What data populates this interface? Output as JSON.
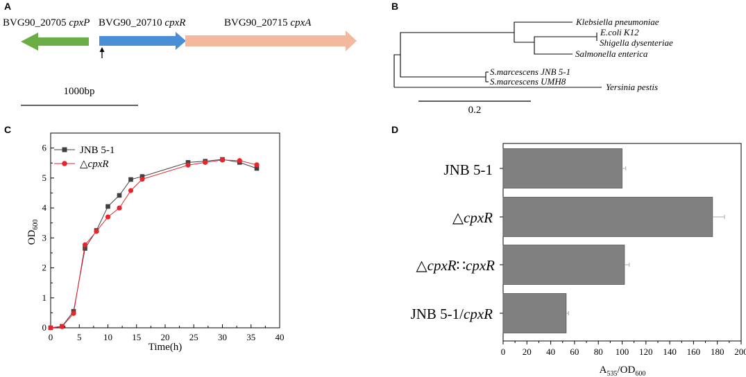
{
  "panel_a": {
    "letter": "A",
    "genes": [
      {
        "id": "BVG90_20705",
        "name": "cpxP",
        "color": "#6aac46",
        "direction": "left"
      },
      {
        "id": "BVG90_20710",
        "name": "cpxR",
        "color": "#4a8fd6",
        "direction": "right"
      },
      {
        "id": "BVG90_20715",
        "name": "cpxA",
        "color": "#f4b89d",
        "direction": "right"
      }
    ],
    "scale_label": "1000bp"
  },
  "panel_b": {
    "letter": "B",
    "taxa": [
      "Klebsiella pneumoniae",
      "E.coli K12",
      "Shigella dysenteriae",
      "Salmonella enterica",
      "S.marcescens JNB 5-1",
      "S.marcescens UMH8",
      "Yersinia pestis"
    ],
    "scale_label": "0.2"
  },
  "chart_data": [
    {
      "panel": "C",
      "type": "line",
      "xlabel": "Time(h)",
      "ylabel_main": "OD",
      "ylabel_sub": "600",
      "xlim": [
        0,
        40
      ],
      "ylim": [
        0,
        6.5
      ],
      "xticks": [
        0,
        5,
        10,
        15,
        20,
        25,
        30,
        35,
        40
      ],
      "yticks": [
        0,
        1,
        2,
        3,
        4,
        5,
        6
      ],
      "series": [
        {
          "name_prefix": "JNB 5-1",
          "name_italic": "",
          "color": "#404040",
          "marker": "square",
          "x": [
            0,
            2,
            4,
            6,
            8,
            10,
            12,
            14,
            16,
            24,
            27,
            30,
            33,
            36
          ],
          "y": [
            0,
            0.05,
            0.55,
            2.65,
            3.25,
            4.05,
            4.42,
            4.95,
            5.05,
            5.52,
            5.56,
            5.62,
            5.52,
            5.32
          ]
        },
        {
          "name_prefix": "△",
          "name_italic": "cpxR",
          "color": "#e8242c",
          "marker": "circle",
          "x": [
            0,
            2,
            4,
            6,
            8,
            10,
            12,
            14,
            16,
            24,
            27,
            30,
            33,
            36
          ],
          "y": [
            0,
            0.04,
            0.48,
            2.77,
            3.22,
            3.7,
            4.0,
            4.58,
            4.96,
            5.43,
            5.52,
            5.6,
            5.58,
            5.44
          ]
        }
      ]
    },
    {
      "panel": "D",
      "type": "bar",
      "orientation": "horizontal",
      "xlabel_main": "A",
      "xlabel_sub1": "535",
      "xlabel_mid": "/OD",
      "xlabel_sub2": "600",
      "xlim": [
        0,
        200
      ],
      "xticks": [
        0,
        20,
        40,
        60,
        80,
        100,
        120,
        140,
        160,
        180,
        200
      ],
      "bar_color": "#808080",
      "categories": [
        {
          "prefix": "JNB 5-1",
          "italic": "",
          "sep": "",
          "italic2": ""
        },
        {
          "prefix": "△",
          "italic": "cpxR",
          "sep": "",
          "italic2": ""
        },
        {
          "prefix": "△",
          "italic": "cpxR",
          "sep": "∷",
          "italic2": "cpxR"
        },
        {
          "prefix": "JNB 5-1/",
          "italic": "cpxR",
          "sep": "",
          "italic2": ""
        }
      ],
      "values": [
        100,
        176,
        102,
        53
      ],
      "errors": [
        3,
        10,
        4,
        2
      ]
    }
  ]
}
